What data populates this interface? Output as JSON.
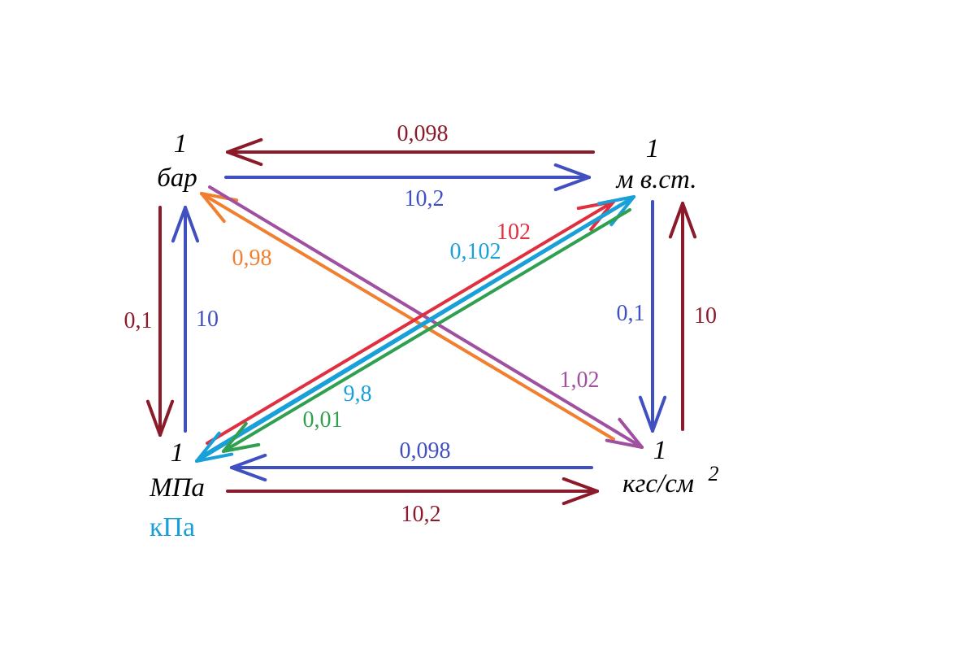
{
  "nodes": [
    {
      "number": "1",
      "label": "бар"
    },
    {
      "number": "1",
      "label": "м в.ст."
    },
    {
      "number": "1",
      "label": "МПа",
      "sublabel": "кПа"
    },
    {
      "number": "1",
      "label": "кгс/см",
      "superscript": "2"
    }
  ],
  "edges": [
    {
      "label": "0,098",
      "color": "#8b1a2b"
    },
    {
      "label": "10,2",
      "color": "#4050c0"
    },
    {
      "label": "0,1",
      "color": "#8b1a2b"
    },
    {
      "label": "10",
      "color": "#4050c0"
    },
    {
      "label": "0,1",
      "color": "#4050c0"
    },
    {
      "label": "10",
      "color": "#8b1a2b"
    },
    {
      "label": "0,098",
      "color": "#4050c0"
    },
    {
      "label": "10,2",
      "color": "#8b1a2b"
    },
    {
      "label": "0,98",
      "color": "#f08030"
    },
    {
      "label": "1,02",
      "color": "#a050a0"
    },
    {
      "label": "102",
      "color": "#e03040"
    },
    {
      "label": "0,102",
      "color": "#1aa0d8"
    },
    {
      "label": "9,8",
      "color": "#1aa0d8"
    },
    {
      "label": "0,01",
      "color": "#30a050"
    }
  ]
}
